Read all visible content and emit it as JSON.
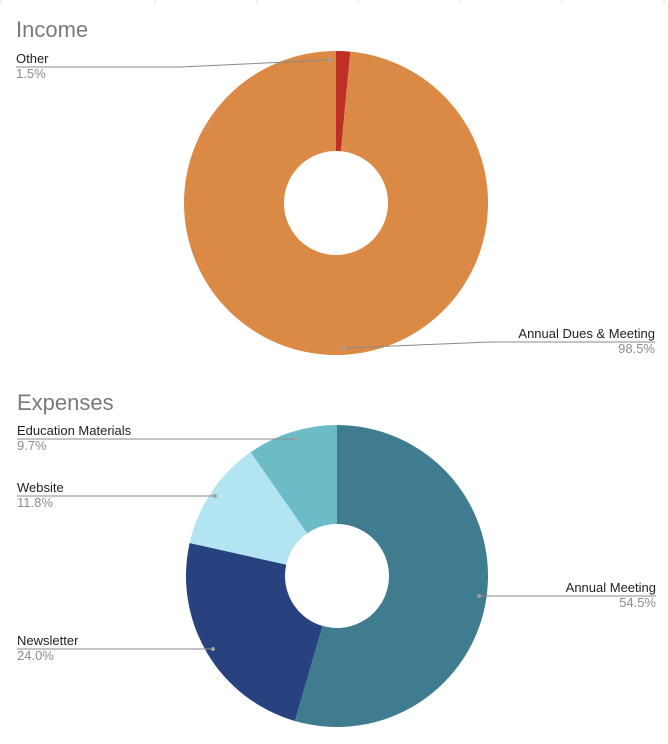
{
  "chart_data": [
    {
      "type": "pie",
      "title": "Income",
      "slices": [
        {
          "label": "Other",
          "percent_label": "1.5%",
          "value": 1.5,
          "color": "#be2f26"
        },
        {
          "label": "Annual Dues & Meeting",
          "percent_label": "98.5%",
          "value": 98.5,
          "color": "#db8a45"
        }
      ]
    },
    {
      "type": "pie",
      "title": "Expenses",
      "slices": [
        {
          "label": "Annual Meeting",
          "percent_label": "54.5%",
          "value": 54.5,
          "color": "#3f7c8f"
        },
        {
          "label": "Newsletter",
          "percent_label": "24.0%",
          "value": 24.0,
          "color": "#27427f"
        },
        {
          "label": "Website",
          "percent_label": "11.8%",
          "value": 11.8,
          "color": "#b2e4f1"
        },
        {
          "label": "Education Materials",
          "percent_label": "9.7%",
          "value": 9.7,
          "color": "#6cbcc8"
        }
      ]
    }
  ]
}
